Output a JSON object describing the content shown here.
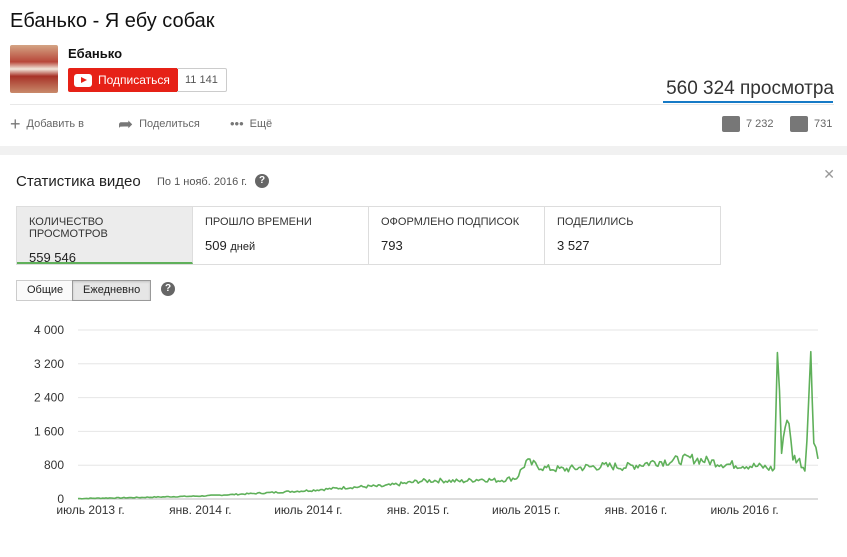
{
  "video": {
    "title": "Ебанько - Я ебу собак"
  },
  "channel": {
    "name": "Ебанько",
    "subscribe_label": "Подписаться",
    "subscriber_count": "11 141"
  },
  "views": {
    "label": "560 324 просмотра"
  },
  "actions": {
    "add": "Добавить в",
    "share": "Поделиться",
    "more": "Ещё",
    "likes": "7 232",
    "dislikes": "731"
  },
  "stats": {
    "title": "Статистика видео",
    "as_of": "По 1 нояб. 2016 г.",
    "metrics": [
      {
        "label": "Количество просмотров",
        "value": "559 546",
        "unit": ""
      },
      {
        "label": "Прошло времени",
        "value": "509",
        "unit": "дней"
      },
      {
        "label": "Оформлено подписок",
        "value": "793",
        "unit": ""
      },
      {
        "label": "Поделились",
        "value": "3 527",
        "unit": ""
      }
    ],
    "tabs": {
      "total": "Общие",
      "daily": "Ежедневно"
    }
  },
  "colors": {
    "accent": "#5fb05a",
    "subscribe": "#e62117",
    "views_bar": "#167ac6"
  },
  "chart_data": {
    "type": "line",
    "ylim": [
      0,
      4000
    ],
    "yticks": [
      0,
      800,
      1600,
      2400,
      3200,
      4000
    ],
    "ytick_labels": [
      "0",
      "800",
      "1 600",
      "2 400",
      "3 200",
      "4 000"
    ],
    "xtick_labels": [
      "июль 2013 г.",
      "янв. 2014 г.",
      "июль 2014 г.",
      "янв. 2015 г.",
      "июль 2015 г.",
      "янв. 2016 г.",
      "июль 2016 г."
    ],
    "series": [
      {
        "x": [
          "2013-06-10",
          "2013-07-15",
          "2013-09-01",
          "2013-10-01",
          "2014-01-01",
          "2014-04-01",
          "2014-07-01",
          "2014-09-01",
          "2014-10-15",
          "2014-11-01",
          "2014-12-15",
          "2015-01-01",
          "2015-02-01",
          "2015-03-15",
          "2015-04-15",
          "2015-05-15",
          "2015-06-15",
          "2015-07-01",
          "2015-08-01",
          "2015-09-01",
          "2015-10-15",
          "2015-11-15",
          "2015-12-15",
          "2016-01-10",
          "2016-02-01",
          "2016-03-01",
          "2016-04-01",
          "2016-05-01",
          "2016-06-01",
          "2016-07-01",
          "2016-08-01",
          "2016-08-20",
          "2016-08-25",
          "2016-09-01",
          "2016-09-10",
          "2016-09-20",
          "2016-10-01",
          "2016-10-10",
          "2016-10-20",
          "2016-10-25",
          "2016-11-01"
        ],
        "y": [
          10,
          20,
          30,
          40,
          70,
          130,
          200,
          270,
          300,
          300,
          380,
          420,
          440,
          420,
          470,
          440,
          500,
          880,
          730,
          700,
          760,
          780,
          760,
          820,
          880,
          900,
          960,
          900,
          820,
          800,
          760,
          700,
          3500,
          1200,
          2000,
          1000,
          900,
          700,
          3300,
          1500,
          950
        ]
      }
    ]
  }
}
